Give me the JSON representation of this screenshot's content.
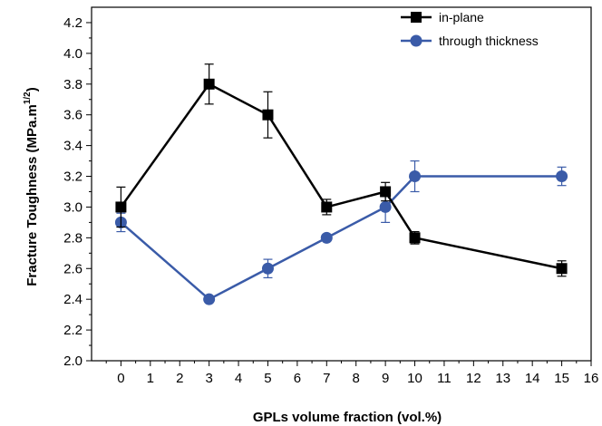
{
  "chart_data": {
    "type": "line",
    "xlabel": "GPLs volume fraction (vol.%)",
    "ylabel_main": "Fracture Toughness (MPa.m",
    "ylabel_sup": "1/2",
    "ylabel_tail": ")",
    "xlim": [
      -1,
      16
    ],
    "ylim": [
      2.0,
      4.3
    ],
    "x_ticks": [
      "0",
      "1",
      "2",
      "3",
      "4",
      "5",
      "6",
      "7",
      "8",
      "9",
      "10",
      "11",
      "12",
      "13",
      "14",
      "15",
      "16"
    ],
    "y_ticks": [
      "2.0",
      "2.2",
      "2.4",
      "2.6",
      "2.8",
      "3.0",
      "3.2",
      "3.4",
      "3.6",
      "3.8",
      "4.0",
      "4.2"
    ],
    "categories": [
      0,
      3,
      5,
      7,
      9,
      10,
      15
    ],
    "x_positions": [
      0,
      3,
      5,
      7,
      9,
      10,
      15
    ],
    "series": [
      {
        "name": "in-plane",
        "color": "#000000",
        "marker": "square",
        "values": [
          3.0,
          3.8,
          3.6,
          3.0,
          3.1,
          2.8,
          2.6
        ],
        "errors": [
          0.13,
          0.13,
          0.15,
          0.05,
          0.06,
          0.04,
          0.05
        ]
      },
      {
        "name": "through thickness",
        "color": "#3a5ba8",
        "marker": "circle",
        "values": [
          2.9,
          2.4,
          2.6,
          2.8,
          3.0,
          3.2,
          3.2
        ],
        "errors": [
          0.06,
          0.02,
          0.06,
          0.02,
          0.1,
          0.1,
          0.06
        ]
      }
    ],
    "legend_position": "top-right",
    "grid": false
  }
}
